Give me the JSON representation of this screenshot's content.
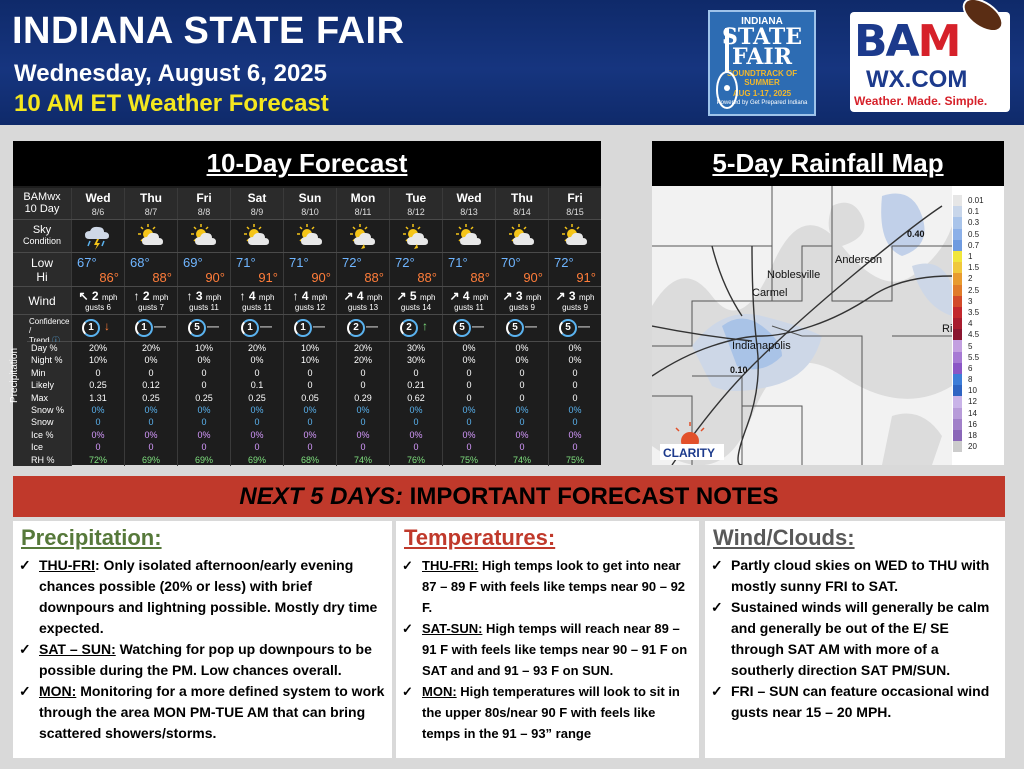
{
  "header": {
    "title": "INDIANA STATE FAIR",
    "date": "Wednesday, August 6, 2025",
    "forecast_time": "10 AM ET Weather Forecast"
  },
  "fair_logo": {
    "line1": "INDIANA",
    "line2": "STATE",
    "line3": "FAIR",
    "line4": "SOUNDTRACK OF SUMMER",
    "line5": "AUG 1-17, 2025",
    "line6": "Powered by Get Prepared Indiana"
  },
  "bam_logo": {
    "bam": "BAM",
    "wx": "WX.COM",
    "tagline": "Weather. Made. Simple."
  },
  "forecast": {
    "title": "10-Day Forecast",
    "brand": "BAMwx",
    "brand_sub": "10 Day",
    "labels": {
      "sky": "Sky",
      "sky_sub": "Condition",
      "low": "Low",
      "hi": "Hi",
      "wind": "Wind",
      "confidence": "Confidence /",
      "trend": "Trend",
      "precipitation": "Precipitation"
    },
    "days": [
      {
        "day": "Wed",
        "date": "8/6",
        "sky": "storm",
        "low": "67°",
        "hi": "86°",
        "wind_dir": "↖",
        "wind": "2",
        "gusts": "gusts 6",
        "conf": "1",
        "trend": "↓"
      },
      {
        "day": "Thu",
        "date": "8/7",
        "sky": "partly-sunny",
        "low": "68°",
        "hi": "88°",
        "wind_dir": "↑",
        "wind": "2",
        "gusts": "gusts 7",
        "conf": "1",
        "trend": "—"
      },
      {
        "day": "Fri",
        "date": "8/8",
        "sky": "partly-sunny",
        "low": "69°",
        "hi": "90°",
        "wind_dir": "↑",
        "wind": "3",
        "gusts": "gusts 11",
        "conf": "5",
        "trend": "—"
      },
      {
        "day": "Sat",
        "date": "8/9",
        "sky": "partly-sunny",
        "low": "71°",
        "hi": "91°",
        "wind_dir": "↑",
        "wind": "4",
        "gusts": "gusts 11",
        "conf": "1",
        "trend": "—"
      },
      {
        "day": "Sun",
        "date": "8/10",
        "sky": "partly-sunny",
        "low": "71°",
        "hi": "90°",
        "wind_dir": "↑",
        "wind": "4",
        "gusts": "gusts 12",
        "conf": "1",
        "trend": "—"
      },
      {
        "day": "Mon",
        "date": "8/11",
        "sky": "storm-sun",
        "low": "72°",
        "hi": "88°",
        "wind_dir": "↗",
        "wind": "4",
        "gusts": "gusts 13",
        "conf": "2",
        "trend": "—"
      },
      {
        "day": "Tue",
        "date": "8/12",
        "sky": "storm-sun",
        "low": "72°",
        "hi": "88°",
        "wind_dir": "↗",
        "wind": "5",
        "gusts": "gusts 14",
        "conf": "2",
        "trend": "↑"
      },
      {
        "day": "Wed",
        "date": "8/13",
        "sky": "partly-sunny",
        "low": "71°",
        "hi": "88°",
        "wind_dir": "↗",
        "wind": "4",
        "gusts": "gusts 11",
        "conf": "5",
        "trend": "—"
      },
      {
        "day": "Thu",
        "date": "8/14",
        "sky": "partly-sunny",
        "low": "70°",
        "hi": "90°",
        "wind_dir": "↗",
        "wind": "3",
        "gusts": "gusts 9",
        "conf": "5",
        "trend": "—"
      },
      {
        "day": "Fri",
        "date": "8/15",
        "sky": "partly-sunny",
        "low": "72°",
        "hi": "91°",
        "wind_dir": "↗",
        "wind": "3",
        "gusts": "gusts 9",
        "conf": "5",
        "trend": "—"
      }
    ],
    "mph": "mph",
    "precip_rows": [
      "Day %",
      "Night %",
      "Min",
      "Likely",
      "Max",
      "Snow %",
      "Snow",
      "Ice %",
      "Ice",
      "RH %"
    ],
    "precip_values": [
      [
        "20%",
        "10%",
        "0",
        "0.25",
        "1.31",
        "0%",
        "0",
        "0%",
        "0",
        "72%"
      ],
      [
        "20%",
        "0%",
        "0",
        "0.12",
        "0.25",
        "0%",
        "0",
        "0%",
        "0",
        "69%"
      ],
      [
        "10%",
        "0%",
        "0",
        "0",
        "0.25",
        "0%",
        "0",
        "0%",
        "0",
        "69%"
      ],
      [
        "20%",
        "0%",
        "0",
        "0.1",
        "0.25",
        "0%",
        "0",
        "0%",
        "0",
        "69%"
      ],
      [
        "10%",
        "10%",
        "0",
        "0",
        "0.05",
        "0%",
        "0",
        "0%",
        "0",
        "68%"
      ],
      [
        "20%",
        "20%",
        "0",
        "0",
        "0.29",
        "0%",
        "0",
        "0%",
        "0",
        "74%"
      ],
      [
        "30%",
        "30%",
        "0",
        "0.21",
        "0.62",
        "0%",
        "0",
        "0%",
        "0",
        "76%"
      ],
      [
        "0%",
        "0%",
        "0",
        "0",
        "0",
        "0%",
        "0",
        "0%",
        "0",
        "75%"
      ],
      [
        "0%",
        "0%",
        "0",
        "0",
        "0",
        "0%",
        "0",
        "0%",
        "0",
        "74%"
      ],
      [
        "0%",
        "0%",
        "0",
        "0",
        "0",
        "0%",
        "0",
        "0%",
        "0",
        "75%"
      ]
    ]
  },
  "map": {
    "title": "5-Day Rainfall Map",
    "cities": {
      "noblesville": "Noblesville",
      "carmel": "Carmel",
      "anderson": "Anderson",
      "indianapolis": "Indianapolis",
      "edge": "Ric"
    },
    "amounts": {
      "a1": "0.40",
      "a2": "0.10"
    },
    "clarity": "CLARITY",
    "legend": [
      "0.01",
      "0.1",
      "0.3",
      "0.5",
      "0.7",
      "1",
      "1.5",
      "2",
      "2.5",
      "3",
      "3.5",
      "4",
      "4.5",
      "5",
      "5.5",
      "6",
      "8",
      "10",
      "12",
      "14",
      "16",
      "18",
      "20"
    ],
    "legend_colors": [
      "#e6e6e6",
      "#c8d6ea",
      "#a9c4ea",
      "#8cb0e8",
      "#6f9be0",
      "#f0e63c",
      "#f0c83c",
      "#e89b2f",
      "#e07b2a",
      "#d24a2a",
      "#c2272d",
      "#a81c2e",
      "#8a1530",
      "#c3a0e0",
      "#a77ad4",
      "#8b56c6",
      "#3d7dd8",
      "#2f64c2",
      "#c9b3e8",
      "#b79bd9",
      "#a180c9",
      "#8a66b8",
      "#cccccc"
    ]
  },
  "notes": {
    "banner_lead": "NEXT 5 DAYS:",
    "banner_rest": " IMPORTANT FORECAST NOTES",
    "precipitation": {
      "title": "Precipitation:",
      "items": [
        {
          "key": "THU-FRI",
          "text": ": Only isolated afternoon/early evening chances possible (20% or less) with brief downpours and lightning possible.  Mostly dry time expected."
        },
        {
          "key": "SAT – SUN:",
          "text": " Watching for pop up downpours to be possible during the PM. Low chances overall."
        },
        {
          "key": "MON:",
          "text": " Monitoring for a more defined system to work through the area MON PM-TUE AM that can bring scattered showers/storms."
        }
      ]
    },
    "temperatures": {
      "title": "Temperatures:",
      "items": [
        {
          "key": "THU-FRI:",
          "text": " High temps look to get into near 87 – 89 F with feels like temps near 90 – 92 F."
        },
        {
          "key": "SAT-SUN:",
          "text": " High temps will reach near 89 – 91 F with feels like temps near 90 – 91 F on SAT and and 91 – 93 F on SUN."
        },
        {
          "key": "MON:",
          "text": " High temperatures will look to sit in the upper 80s/near 90 F with feels like temps in the 91 – 93” range"
        }
      ]
    },
    "wind": {
      "title": "Wind/Clouds:",
      "items": [
        {
          "key": "",
          "text": "Partly cloud skies on WED to THU with mostly sunny FRI to SAT."
        },
        {
          "key": "",
          "text": "Sustained winds will generally be calm and generally be out of the E/ SE through SAT AM with more of a southerly direction SAT PM/SUN."
        },
        {
          "key": "",
          "text": "FRI – SUN can feature occasional wind gusts near 15 – 20 MPH."
        }
      ]
    },
    "check": "✓"
  }
}
